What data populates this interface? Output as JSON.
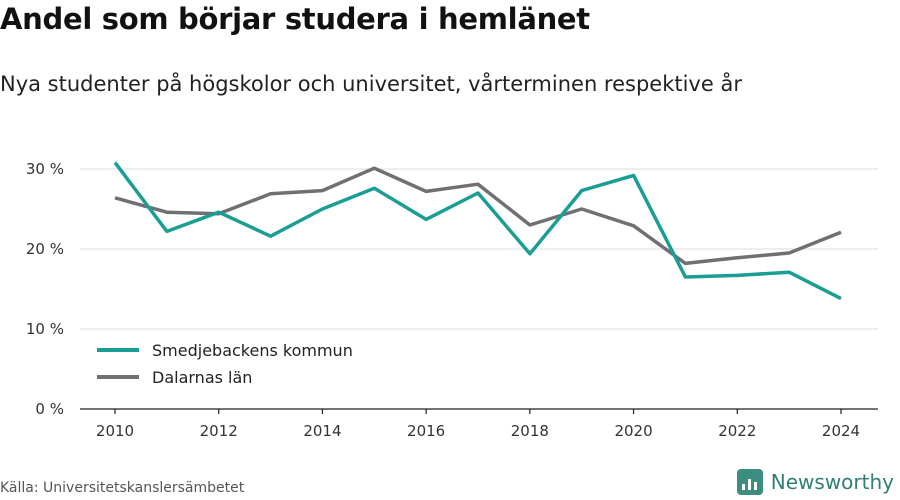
{
  "chart_data": {
    "type": "line",
    "title": "Andel som börjar studera i hemlänet",
    "subtitle": "Nya studenter på högskolor och universitet, vårterminen respektive år",
    "x": [
      2010,
      2011,
      2012,
      2013,
      2014,
      2015,
      2016,
      2017,
      2018,
      2019,
      2020,
      2021,
      2022,
      2023,
      2024
    ],
    "series": [
      {
        "name": "Smedjebackens kommun",
        "color": "#1a9e94",
        "values": [
          30.8,
          22.2,
          24.6,
          21.6,
          25.0,
          27.6,
          23.7,
          27.0,
          19.4,
          27.3,
          29.2,
          16.5,
          16.7,
          17.1,
          13.8
        ]
      },
      {
        "name": "Dalarnas län",
        "color": "#706f73",
        "values": [
          26.4,
          24.6,
          24.4,
          26.9,
          27.3,
          30.1,
          27.2,
          28.1,
          23.0,
          25.0,
          22.9,
          18.2,
          18.9,
          19.5,
          22.1
        ]
      }
    ],
    "xticks": [
      "2010",
      "2012",
      "2014",
      "2016",
      "2018",
      "2020",
      "2022",
      "2024"
    ],
    "yticks": [
      "0 %",
      "10 %",
      "20 %",
      "30 %"
    ],
    "ylim": [
      0,
      30
    ],
    "xlim": [
      2010,
      2024
    ],
    "xlabel": "",
    "ylabel": "",
    "grid": true,
    "legend_position": "lower-left"
  },
  "source": "Källa: Universitetskanslersämbetet",
  "brand": {
    "name": "Newsworthy",
    "color": "#2f7f74",
    "icon": "newsworthy-logo-icon"
  }
}
